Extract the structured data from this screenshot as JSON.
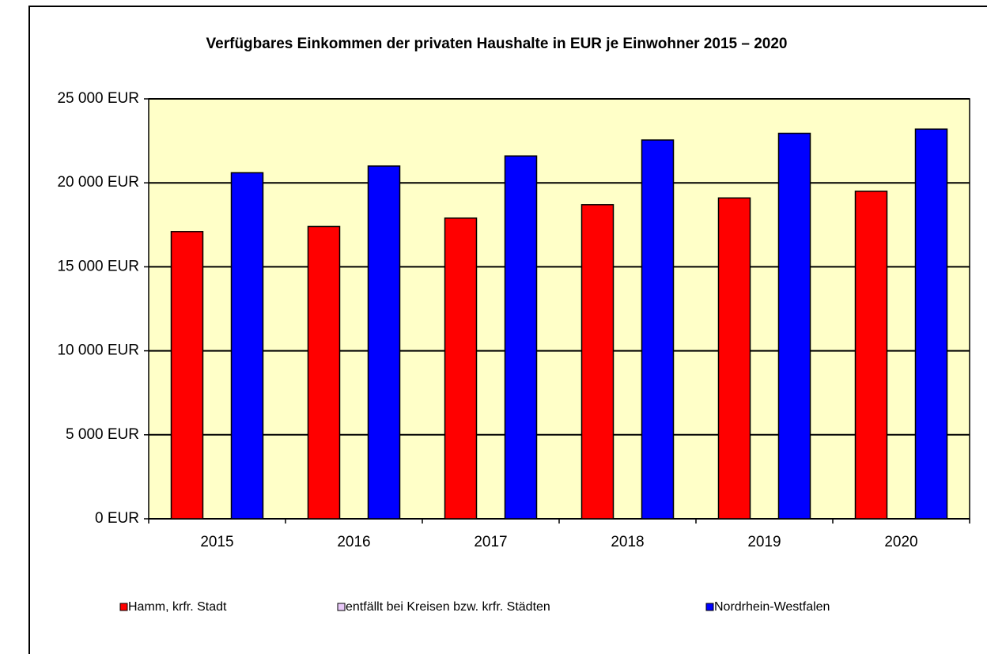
{
  "chart_data": {
    "type": "bar",
    "title": "Verfügbares Einkommen der privaten Haushalte in EUR je Einwohner 2015 – 2020",
    "categories": [
      "2015",
      "2016",
      "2017",
      "2018",
      "2019",
      "2020"
    ],
    "series": [
      {
        "name": "Hamm, krfr. Stadt",
        "color": "#ff0000",
        "values": [
          17100,
          17400,
          17900,
          18700,
          19100,
          19500
        ]
      },
      {
        "name": "entfällt bei Kreisen bzw. krfr. Städten",
        "color": "#e8c8f8",
        "values": [
          null,
          null,
          null,
          null,
          null,
          null
        ]
      },
      {
        "name": "Nordrhein-Westfalen",
        "color": "#0000ff",
        "values": [
          20600,
          21000,
          21600,
          22550,
          22950,
          23200
        ]
      }
    ],
    "ylim": [
      0,
      25000
    ],
    "yticks": [
      {
        "value": 0,
        "label": "0 EUR"
      },
      {
        "value": 5000,
        "label": "5 000 EUR"
      },
      {
        "value": 10000,
        "label": "10 000 EUR"
      },
      {
        "value": 15000,
        "label": "15 000 EUR"
      },
      {
        "value": 20000,
        "label": "20 000 EUR"
      },
      {
        "value": 25000,
        "label": "25 000 EUR"
      }
    ],
    "grid": true,
    "legend": "bottom",
    "plot_background": "#ffffc8"
  }
}
